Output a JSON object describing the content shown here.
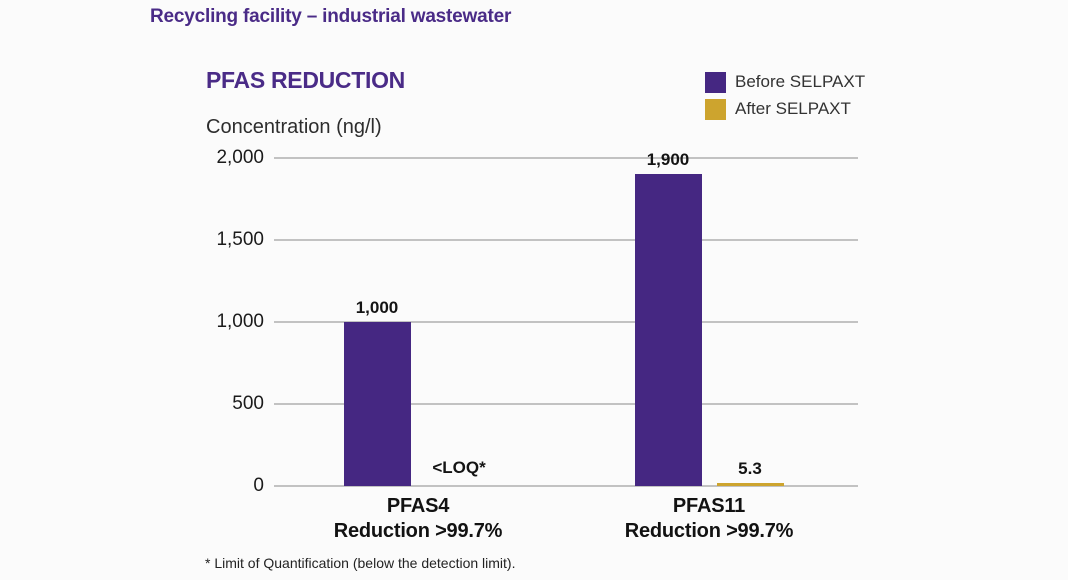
{
  "page": {
    "title": "Recycling facility – industrial wastewater",
    "footnote": "* Limit of Quantification (below the detection limit)."
  },
  "chart": {
    "title": "PFAS REDUCTION",
    "axis_label": "Concentration (ng/l)"
  },
  "chart_data": {
    "type": "bar",
    "title": "PFAS REDUCTION",
    "ylabel": "Concentration (ng/l)",
    "categories": [
      "PFAS4",
      "PFAS11"
    ],
    "category_sublabels": [
      "Reduction >99.7%",
      "Reduction >99.7%"
    ],
    "series": [
      {
        "name": "Before SELPAXT",
        "color": "#452782",
        "values": [
          1000,
          1900
        ],
        "value_labels": [
          "1,000",
          "1,900"
        ]
      },
      {
        "name": "After SELPAXT",
        "color": "#CDA42E",
        "values": [
          null,
          5.3
        ],
        "value_labels": [
          "<LOQ*",
          "5.3"
        ]
      }
    ],
    "ylim": [
      0,
      2000
    ],
    "yticks": [
      {
        "value": 0,
        "label": "0"
      },
      {
        "value": 500,
        "label": "500"
      },
      {
        "value": 1000,
        "label": "1,000"
      },
      {
        "value": 1500,
        "label": "1,500"
      },
      {
        "value": 2000,
        "label": "2,000"
      }
    ],
    "grid": true,
    "legend_position": "top-right",
    "footnote": "* Limit of Quantification (below the detection limit)."
  }
}
